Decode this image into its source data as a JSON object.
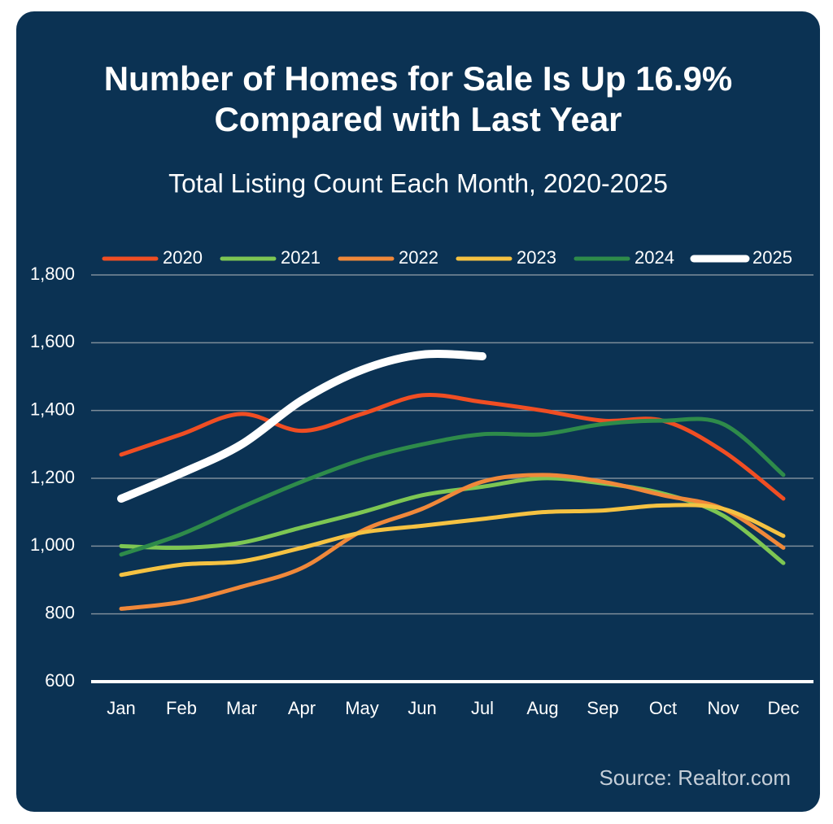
{
  "chart_data": {
    "type": "line",
    "title": [
      "Number of Homes for Sale Is Up 16.9%",
      "Compared with Last Year"
    ],
    "subtitle": "Total Listing Count Each Month, 2020-2025",
    "source": "Source: Realtor.com",
    "categories": [
      "Jan",
      "Feb",
      "Mar",
      "Apr",
      "May",
      "Jun",
      "Jul",
      "Aug",
      "Sep",
      "Oct",
      "Nov",
      "Dec"
    ],
    "series": [
      {
        "name": "2020",
        "color": "#f04e23",
        "values": [
          1270,
          1330,
          1390,
          1340,
          1390,
          1445,
          1425,
          1400,
          1370,
          1370,
          1280,
          1140
        ]
      },
      {
        "name": "2021",
        "color": "#7dc653",
        "values": [
          1000,
          995,
          1010,
          1055,
          1100,
          1150,
          1175,
          1200,
          1185,
          1155,
          1090,
          950
        ]
      },
      {
        "name": "2022",
        "color": "#f0883a",
        "values": [
          815,
          835,
          880,
          935,
          1045,
          1110,
          1190,
          1210,
          1190,
          1150,
          1110,
          995
        ]
      },
      {
        "name": "2023",
        "color": "#f5c242",
        "values": [
          915,
          945,
          955,
          995,
          1040,
          1060,
          1080,
          1100,
          1105,
          1120,
          1110,
          1030
        ]
      },
      {
        "name": "2024",
        "color": "#2e8b4a",
        "values": [
          975,
          1035,
          1115,
          1190,
          1255,
          1300,
          1330,
          1330,
          1360,
          1370,
          1360,
          1210
        ]
      },
      {
        "name": "2025",
        "color": "#ffffff",
        "values": [
          1140,
          1215,
          1300,
          1430,
          1520,
          1565,
          1560,
          null,
          null,
          null,
          null,
          null
        ]
      }
    ],
    "ylim": [
      600,
      1800
    ],
    "yticks": [
      600,
      800,
      {
        "value": 1000,
        "label": "1,000"
      },
      {
        "value": 1200,
        "label": "1,200"
      },
      {
        "value": 1400,
        "label": "1,400"
      },
      {
        "value": 1600,
        "label": "1,600"
      },
      {
        "value": 1800,
        "label": "1,800"
      }
    ],
    "grid": true,
    "legend": "top"
  }
}
